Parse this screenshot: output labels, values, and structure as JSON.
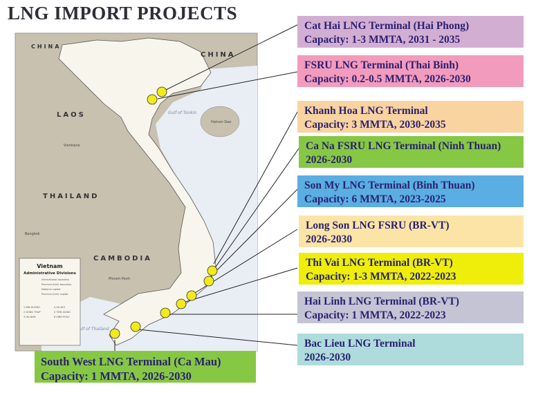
{
  "title": "LNG IMPORT PROJECTS",
  "map": {
    "country_labels": [
      "CHINA",
      "CHINA",
      "LAOS",
      "THAILAND",
      "CAMBODIA"
    ],
    "sea_labels": [
      "Gulf of Tonkin",
      "Gulf of Thailand"
    ],
    "place_labels": [
      "Hainan Dao",
      "Bangkok",
      "Phnom Penh",
      "Vientiane"
    ],
    "legend": {
      "title": "Vietnam",
      "subtitle": "Administrative Divisions",
      "items": [
        "International boundary",
        "Province (tinh) boundary",
        "National capital",
        "Province (tinh) capital"
      ],
      "numbered": [
        "1 BIN DUONG",
        "2 DONG THAP",
        "3 HA NAM",
        "4 HA NOI",
        "5 TIEN GIANG",
        "6 VINH PHUC"
      ]
    },
    "colors": {
      "land_other": "#c8c1b0",
      "vietnam": "#f7f5ec",
      "sea": "#e9edf4",
      "marker": "#f2ea1a"
    }
  },
  "projects": [
    {
      "name": "Cat Hai LNG Terminal (Hai Phong)",
      "detail": "Capacity: 1-3 MMTA, 2031 - 2035",
      "color": "#d3aed3"
    },
    {
      "name": "FSRU LNG Terminal (Thai Binh)",
      "detail": "Capacity: 0.2-0.5 MMTA, 2026-2030",
      "color": "#f29bbd"
    },
    {
      "name": "Khanh Hoa LNG Terminal",
      "detail": "Capacity: 3 MMTA, 2030-2035",
      "color": "#f9d3a0"
    },
    {
      "name": "Ca Na FSRU LNG Terminal (Ninh Thuan)",
      "detail": "2026-2030",
      "color": "#86c843"
    },
    {
      "name": "Son My LNG Terminal (Binh Thuan)",
      "detail": "Capacity: 6 MMTA, 2023-2025",
      "color": "#5aaee2"
    },
    {
      "name": "Long Son LNG FSRU (BR-VT)",
      "detail": "2026-2030",
      "color": "#fbe4a6"
    },
    {
      "name": "Thi Vai  LNG Terminal (BR-VT)",
      "detail": "Capacity: 1-3 MMTA, 2022-2023",
      "color": "#eeee0a"
    },
    {
      "name": "Hai Linh LNG Terminal (BR-VT)",
      "detail": "Capacity: 1 MMTA, 2022-2023",
      "color": "#c4c4d4"
    },
    {
      "name": "Bac Lieu LNG Terminal",
      "detail": "2026-2030",
      "color": "#aedbdc"
    },
    {
      "name": "South West LNG Terminal (Ca Mau)",
      "detail": "Capacity: 1 MMTA, 2026-2030",
      "color": "#86c843"
    }
  ]
}
